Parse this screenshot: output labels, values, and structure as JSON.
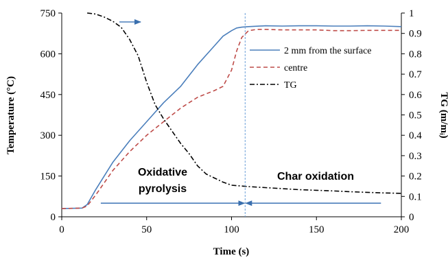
{
  "chart_data": {
    "type": "line",
    "xlabel": "Time (s)",
    "ylabel": "Temperature (°C)",
    "y2label": "TG (m/mᵢ)",
    "xlim": [
      0,
      200
    ],
    "ylim": [
      0,
      750
    ],
    "y2lim": [
      0,
      1
    ],
    "x_ticks": [
      "0",
      "50",
      "100",
      "150",
      "200"
    ],
    "y_ticks": [
      "0",
      "150",
      "300",
      "450",
      "600",
      "750"
    ],
    "y2_ticks": [
      "0",
      "0.1",
      "0.2",
      "0.3",
      "0.4",
      "0.5",
      "0.6",
      "0.7",
      "0.8",
      "0.9",
      "1"
    ],
    "grid": false,
    "legend_position": "upper-right",
    "series": [
      {
        "name": "2 mm from the surface",
        "axis": "left",
        "color": "#4a7ebb",
        "style": "solid",
        "x": [
          0,
          12,
          15,
          20,
          30,
          40,
          50,
          60,
          70,
          80,
          90,
          95,
          100,
          103,
          106,
          110,
          120,
          130,
          140,
          150,
          160,
          170,
          180,
          190,
          200
        ],
        "y": [
          30,
          32,
          45,
          100,
          200,
          280,
          350,
          420,
          480,
          560,
          630,
          665,
          685,
          695,
          698,
          700,
          703,
          702,
          703,
          703,
          702,
          702,
          703,
          702,
          700
        ]
      },
      {
        "name": "centre",
        "axis": "left",
        "color": "#be4b48",
        "style": "dashed",
        "x": [
          0,
          12,
          15,
          20,
          30,
          40,
          50,
          60,
          70,
          75,
          80,
          90,
          95,
          100,
          103,
          106,
          110,
          115,
          120,
          130,
          140,
          150,
          160,
          170,
          180,
          190,
          200
        ],
        "y": [
          30,
          32,
          40,
          80,
          170,
          240,
          300,
          350,
          400,
          420,
          440,
          465,
          480,
          540,
          610,
          660,
          685,
          690,
          690,
          688,
          688,
          688,
          685,
          685,
          686,
          686,
          686
        ]
      },
      {
        "name": "TG",
        "axis": "right",
        "color": "#000000",
        "style": "dash-dot",
        "x": [
          15,
          20,
          25,
          30,
          35,
          40,
          45,
          50,
          55,
          60,
          65,
          70,
          75,
          80,
          85,
          90,
          95,
          100,
          110,
          120,
          130,
          140,
          150,
          160,
          170,
          180,
          190,
          200
        ],
        "y": [
          1.0,
          0.995,
          0.98,
          0.96,
          0.93,
          0.87,
          0.79,
          0.66,
          0.55,
          0.48,
          0.42,
          0.36,
          0.31,
          0.25,
          0.21,
          0.19,
          0.17,
          0.155,
          0.148,
          0.143,
          0.138,
          0.133,
          0.13,
          0.127,
          0.123,
          0.12,
          0.117,
          0.115
        ]
      }
    ],
    "annotations": {
      "region1": [
        "Oxidative",
        "pyrolysis"
      ],
      "region2": "Char oxidation",
      "divider_x": 108,
      "arrow_left_from": 23,
      "arrow_right_to": 188,
      "arrow_temp": 50,
      "arrow_color": "#4a7ebb",
      "divider_color": "#6a9fd8"
    }
  }
}
